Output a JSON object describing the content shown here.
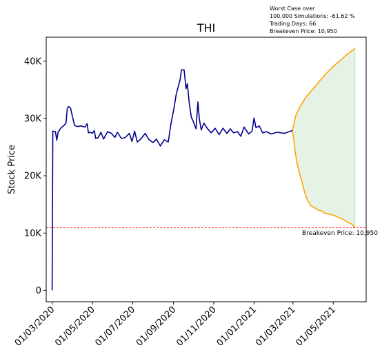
{
  "chart_data": {
    "type": "line",
    "title": "THI",
    "xlabel": "",
    "ylabel": "Stock Price",
    "ylim": [
      -2000,
      44200
    ],
    "y_ticks": [
      {
        "value": 0,
        "label": "0"
      },
      {
        "value": 10000,
        "label": "10K"
      },
      {
        "value": 20000,
        "label": "20K"
      },
      {
        "value": 30000,
        "label": "30K"
      },
      {
        "value": 40000,
        "label": "40K"
      }
    ],
    "x_ticks": [
      "01/03/2020",
      "01/05/2020",
      "01/07/2020",
      "01/09/2020",
      "01/11/2020",
      "01/01/2021",
      "01/03/2021",
      "01/05/2021"
    ],
    "grid": false,
    "colors": {
      "history": "#00008b",
      "projection": "#ffa500",
      "band_fill": "#e5f2e5",
      "band_edge": "#bfdfbf",
      "breakeven": "#ff0000"
    },
    "notes": {
      "worst_case_line1": "Worst Case over",
      "worst_case_line2": "100,000 Simulations: -61.62 %",
      "trading_days": "Trading Days: 66",
      "breakeven_label": "Breakeven Price: 10,950"
    },
    "breakeven": {
      "value": 10950,
      "label": "Breakeven Price: 10,950"
    },
    "series": [
      {
        "role": "history",
        "points": [
          [
            "2020-03-01",
            0
          ],
          [
            "2020-03-02",
            27800
          ],
          [
            "2020-03-06",
            27700
          ],
          [
            "2020-03-08",
            26200
          ],
          [
            "2020-03-10",
            27600
          ],
          [
            "2020-03-14",
            28300
          ],
          [
            "2020-03-19",
            28800
          ],
          [
            "2020-03-22",
            29200
          ],
          [
            "2020-03-24",
            31800
          ],
          [
            "2020-03-26",
            32100
          ],
          [
            "2020-03-29",
            31800
          ],
          [
            "2020-04-01",
            30200
          ],
          [
            "2020-04-04",
            28800
          ],
          [
            "2020-04-08",
            28600
          ],
          [
            "2020-04-14",
            28700
          ],
          [
            "2020-04-20",
            28500
          ],
          [
            "2020-04-23",
            29100
          ],
          [
            "2020-04-25",
            27500
          ],
          [
            "2020-04-28",
            27600
          ],
          [
            "2020-05-01",
            27400
          ],
          [
            "2020-05-04",
            27900
          ],
          [
            "2020-05-06",
            26500
          ],
          [
            "2020-05-10",
            26700
          ],
          [
            "2020-05-14",
            27600
          ],
          [
            "2020-05-18",
            26400
          ],
          [
            "2020-05-24",
            27700
          ],
          [
            "2020-05-30",
            27400
          ],
          [
            "2020-06-04",
            26700
          ],
          [
            "2020-06-08",
            27600
          ],
          [
            "2020-06-14",
            26500
          ],
          [
            "2020-06-20",
            26700
          ],
          [
            "2020-06-26",
            27400
          ],
          [
            "2020-06-30",
            26000
          ],
          [
            "2020-07-04",
            27800
          ],
          [
            "2020-07-08",
            25900
          ],
          [
            "2020-07-14",
            26500
          ],
          [
            "2020-07-20",
            27400
          ],
          [
            "2020-07-26",
            26300
          ],
          [
            "2020-08-01",
            25800
          ],
          [
            "2020-08-06",
            26400
          ],
          [
            "2020-08-12",
            25200
          ],
          [
            "2020-08-18",
            26300
          ],
          [
            "2020-08-24",
            25900
          ],
          [
            "2020-08-28",
            29000
          ],
          [
            "2020-09-02",
            32000
          ],
          [
            "2020-09-05",
            34200
          ],
          [
            "2020-09-08",
            35500
          ],
          [
            "2020-09-11",
            36800
          ],
          [
            "2020-09-13",
            38500
          ],
          [
            "2020-09-17",
            38500
          ],
          [
            "2020-09-20",
            35200
          ],
          [
            "2020-09-22",
            36100
          ],
          [
            "2020-09-25",
            32500
          ],
          [
            "2020-09-28",
            30200
          ],
          [
            "2020-10-01",
            29500
          ],
          [
            "2020-10-05",
            28200
          ],
          [
            "2020-10-08",
            32900
          ],
          [
            "2020-10-10",
            30000
          ],
          [
            "2020-10-13",
            28000
          ],
          [
            "2020-10-17",
            29200
          ],
          [
            "2020-10-22",
            28300
          ],
          [
            "2020-10-28",
            27500
          ],
          [
            "2020-11-03",
            28300
          ],
          [
            "2020-11-09",
            27200
          ],
          [
            "2020-11-15",
            28300
          ],
          [
            "2020-11-21",
            27400
          ],
          [
            "2020-11-26",
            28200
          ],
          [
            "2020-12-01",
            27500
          ],
          [
            "2020-12-07",
            27700
          ],
          [
            "2020-12-12",
            26900
          ],
          [
            "2020-12-17",
            28500
          ],
          [
            "2020-12-24",
            27300
          ],
          [
            "2020-12-29",
            27800
          ],
          [
            "2021-01-01",
            30100
          ],
          [
            "2021-01-04",
            28400
          ],
          [
            "2021-01-09",
            28700
          ],
          [
            "2021-01-14",
            27500
          ],
          [
            "2021-01-20",
            27700
          ],
          [
            "2021-01-27",
            27300
          ],
          [
            "2021-02-05",
            27600
          ],
          [
            "2021-02-16",
            27400
          ],
          [
            "2021-02-28",
            27900
          ]
        ]
      },
      {
        "role": "projection-upper",
        "points": [
          [
            "2021-02-28",
            27900
          ],
          [
            "2021-03-02",
            28800
          ],
          [
            "2021-03-05",
            30400
          ],
          [
            "2021-03-08",
            31200
          ],
          [
            "2021-03-13",
            32300
          ],
          [
            "2021-03-20",
            33600
          ],
          [
            "2021-03-27",
            34600
          ],
          [
            "2021-04-03",
            35500
          ],
          [
            "2021-04-10",
            36500
          ],
          [
            "2021-04-17",
            37400
          ],
          [
            "2021-04-24",
            38300
          ],
          [
            "2021-05-01",
            39100
          ],
          [
            "2021-05-08",
            39800
          ],
          [
            "2021-05-15",
            40500
          ],
          [
            "2021-05-22",
            41200
          ],
          [
            "2021-05-30",
            41900
          ],
          [
            "2021-06-03",
            42300
          ]
        ]
      },
      {
        "role": "projection-lower",
        "points": [
          [
            "2021-02-28",
            27900
          ],
          [
            "2021-03-02",
            26500
          ],
          [
            "2021-03-04",
            24500
          ],
          [
            "2021-03-07",
            22300
          ],
          [
            "2021-03-11",
            20400
          ],
          [
            "2021-03-15",
            18800
          ],
          [
            "2021-03-19",
            17000
          ],
          [
            "2021-03-23",
            15700
          ],
          [
            "2021-03-28",
            14800
          ],
          [
            "2021-04-03",
            14400
          ],
          [
            "2021-04-08",
            14000
          ],
          [
            "2021-04-13",
            13900
          ],
          [
            "2021-04-18",
            13500
          ],
          [
            "2021-04-25",
            13300
          ],
          [
            "2021-05-02",
            13100
          ],
          [
            "2021-05-09",
            12700
          ],
          [
            "2021-05-16",
            12400
          ],
          [
            "2021-05-23",
            11900
          ],
          [
            "2021-05-30",
            11500
          ],
          [
            "2021-06-03",
            10900
          ]
        ]
      }
    ]
  }
}
